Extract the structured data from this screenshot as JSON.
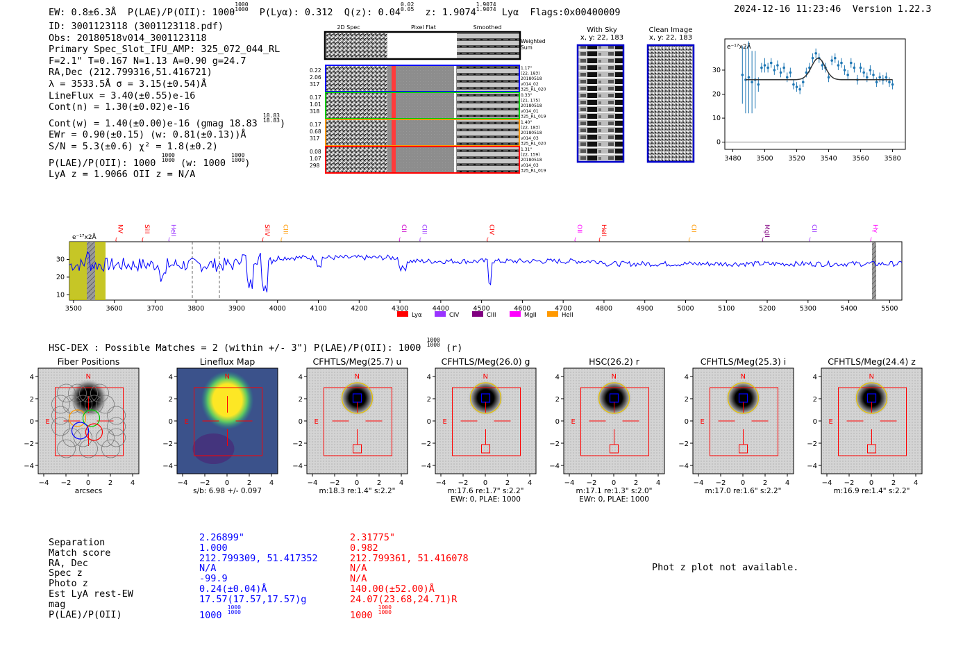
{
  "header": {
    "ew": "EW: 0.8±6.3Å",
    "plae_label": "P(LAE)/P(OII):",
    "plae_value": "1000",
    "plae_hi": "1000",
    "plae_lo": "1000",
    "plya": "P(Lyα): 0.312",
    "qz_label": "Q(z): 0.04",
    "qz_hi": "0.02",
    "qz_lo": "0.05",
    "z_label": "z: 1.9074",
    "z_hi": "1.9074",
    "z_lo": "1.9074",
    "z_line": "Lyα",
    "flags": "Flags:0x00400009",
    "datetime": "2024-12-16 11:23:46",
    "version": "Version 1.22.3"
  },
  "info": {
    "id": "ID: 3001123118 (3001123118.pdf)",
    "obs": "Obs: 20180518v014_3001123118",
    "primary": "Primary Spec_Slot_IFU_AMP: 325_072_044_RL",
    "fwhm": "F=2.1\"  T=0.167  N=1.13  A=0.90  g=24.7",
    "radec": "RA,Dec (212.799316,51.416721)",
    "lambda": "λ = 3533.5Å   σ = 3.15(±0.54)Å",
    "lineflux": "LineFlux = 3.40(±0.55)e-16",
    "contn": "Cont(n) = 1.30(±0.02)e-16",
    "contw": "Cont(w) = 1.40(±0.00)e-16 (gmag 18.83",
    "contw_hi": "18.83",
    "contw_lo": "18.83",
    "ewr": "EWr = 0.90(±0.15) (w: 0.81(±0.13))Å",
    "sn": "S/N = 5.3(±0.6)  χ² = 1.8(±0.2)",
    "plae": "P(LAE)/P(OII): 1000",
    "plae_hi": "1000",
    "plae_lo": "1000",
    "plae_w": "(w: 1000",
    "plae_w_hi": "1000",
    "plae_w_lo": "1000",
    "lyaz": "LyA z = 1.9066   OII z = N/A"
  },
  "cutouts": {
    "headers": [
      "2D Spec",
      "Pixel Flat",
      "Smoothed"
    ],
    "weighted_label": [
      "Weighted",
      "Sum"
    ],
    "rows": [
      {
        "left": [
          "0.22",
          "2.06",
          "317"
        ],
        "right": [
          "1.17\"",
          "(22, 183)",
          "20180518",
          "v014_02",
          "325_RL_020"
        ],
        "color": "#0000ff"
      },
      {
        "left": [
          "0.17",
          "1.01",
          "318"
        ],
        "right": [
          "0.33\"",
          "(21, 175)",
          "20180518",
          "v014_01",
          "325_RL_019"
        ],
        "color": "#00cc00"
      },
      {
        "left": [
          "0.17",
          "0.68",
          "317"
        ],
        "right": [
          "1.40\"",
          "(22, 183)",
          "20180518",
          "v014_03",
          "325_RL_020"
        ],
        "color": "#ff9900"
      },
      {
        "left": [
          "0.08",
          "1.07",
          "298"
        ],
        "right": [
          "1.31\"",
          "(22, 159)",
          "20180518",
          "v014_03",
          "325_RL_019"
        ],
        "color": "#ff0000"
      }
    ]
  },
  "sky": {
    "with_sky_title": "With Sky",
    "with_sky_xy": "x, y: 22, 183",
    "clean_title": "Clean Image",
    "clean_xy": "x, y: 22, 183"
  },
  "line_fit": {
    "ylabel": "e⁻¹⁷x2Å",
    "xticks": [
      "3480",
      "3500",
      "3520",
      "3540",
      "3560",
      "3580"
    ],
    "yticks": [
      "0",
      "10",
      "20",
      "30"
    ]
  },
  "spectrum": {
    "ylabel": "e⁻¹⁷x2Å",
    "xticks": [
      "3500",
      "3600",
      "3700",
      "3800",
      "3900",
      "4000",
      "4100",
      "4200",
      "4300",
      "4400",
      "4500",
      "4600",
      "4700",
      "4800",
      "4900",
      "5000",
      "5100",
      "5200",
      "5300",
      "5400",
      "5500"
    ],
    "yticks": [
      "10",
      "20",
      "30"
    ],
    "line_labels": [
      {
        "name": "NV",
        "color": "#ff0000"
      },
      {
        "name": "SiII",
        "color": "#ff0000"
      },
      {
        "name": "HeII",
        "color": "#9933ff"
      },
      {
        "name": "SiIV",
        "color": "#ff0000"
      },
      {
        "name": "CIII",
        "color": "#ff9900"
      },
      {
        "name": "CII",
        "color": "#cc00cc"
      },
      {
        "name": "CIII",
        "color": "#9933ff"
      },
      {
        "name": "CIV",
        "color": "#ff0000"
      },
      {
        "name": "OII",
        "color": "#ff00ff"
      },
      {
        "name": "HeII",
        "color": "#ff0000"
      },
      {
        "name": "CII",
        "color": "#ff9900"
      },
      {
        "name": "MgII",
        "color": "#800080"
      },
      {
        "name": "CII",
        "color": "#9933ff"
      },
      {
        "name": "Hγ",
        "color": "#ff00ff"
      }
    ],
    "legend": [
      {
        "name": "Lyα",
        "color": "#ff0000"
      },
      {
        "name": "CIV",
        "color": "#9933ff"
      },
      {
        "name": "CIII",
        "color": "#800080"
      },
      {
        "name": "MgII",
        "color": "#ff00ff"
      },
      {
        "name": "HeII",
        "color": "#ff9900"
      }
    ]
  },
  "hsc": {
    "title": "HSC-DEX : Possible Matches = 2 (within +/- 3\")  P(LAE)/P(OII): 1000",
    "title_hi": "1000",
    "title_lo": "1000",
    "title_tail": "(r)"
  },
  "panels": [
    {
      "title": "Fiber Positions",
      "foot1": "arcsecs",
      "foot2": ""
    },
    {
      "title": "Lineflux Map",
      "foot1": "s/b: 6.98 +/- 0.097",
      "foot2": ""
    },
    {
      "title": "CFHTLS/Meg(25.7) u",
      "foot1": "m:18.3  re:1.4\"  s:2.2\"",
      "foot2": ""
    },
    {
      "title": "CFHTLS/Meg(26.0) g",
      "foot1": "m:17.6  re:1.7\"  s:2.2\"",
      "foot2": "EWr: 0, PLAE: 1000"
    },
    {
      "title": "HSC(26.2) r",
      "foot1": "m:17.1  re:1.3\"  s:2.0\"",
      "foot2": "EWr: 0, PLAE: 1000"
    },
    {
      "title": "CFHTLS/Meg(25.3) i",
      "foot1": "m:17.0  re:1.6\"  s:2.2\"",
      "foot2": ""
    },
    {
      "title": "CFHTLS/Meg(24.4) z",
      "foot1": "m:16.9  re:1.4\"  s:2.2\"",
      "foot2": ""
    }
  ],
  "panel_axis": {
    "ticks": [
      "4",
      "2",
      "0",
      "−2",
      "−4"
    ],
    "xticks": [
      "−4",
      "−2",
      "0",
      "2",
      "4"
    ],
    "n": "N",
    "e": "E"
  },
  "matches": {
    "labels": [
      "Separation",
      "Match score",
      "RA, Dec",
      "Spec z",
      "Photo z",
      "Est LyA rest-EW",
      "mag",
      "P(LAE)/P(OII)"
    ],
    "blue": [
      "2.26899\"",
      "1.000",
      "212.799309, 51.417352",
      "N/A",
      "-99.9",
      "0.24(±0.04)Å",
      "17.57(17.57,17.57)g",
      "1000"
    ],
    "blue_hi": "1000",
    "blue_lo": "1000",
    "red": [
      "2.31775\"",
      "0.982",
      "212.799361, 51.416078",
      "N/A",
      "N/A",
      "140.00(±52.00)Å",
      "24.07(23.68,24.71)R",
      "1000"
    ],
    "red_hi": "1000",
    "red_lo": "1000"
  },
  "phot_z": "Phot z plot not available."
}
